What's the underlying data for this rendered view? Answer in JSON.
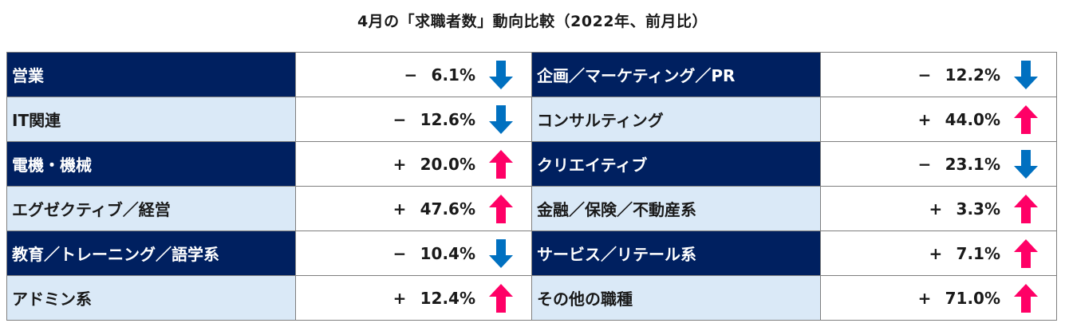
{
  "title": "4月の「求職者数」動向比較（2022年、前月比）",
  "colors": {
    "dark_header": "#002060",
    "light_header": "#dae9f7",
    "up": "#ff0066",
    "down": "#0070c0"
  },
  "chart_data": {
    "type": "table",
    "title": "4月の「求職者数」動向比較（2022年、前月比）",
    "rows": [
      {
        "left": {
          "category": "営業",
          "sign": "−",
          "value": "6.1%",
          "change": -6.1,
          "direction": "down"
        },
        "right": {
          "category": "企画／マーケティング／PR",
          "sign": "−",
          "value": "12.2%",
          "change": -12.2,
          "direction": "down"
        }
      },
      {
        "left": {
          "category": "IT関連",
          "sign": "−",
          "value": "12.6%",
          "change": -12.6,
          "direction": "down"
        },
        "right": {
          "category": "コンサルティング",
          "sign": "+",
          "value": "44.0%",
          "change": 44.0,
          "direction": "up"
        }
      },
      {
        "left": {
          "category": "電機・機械",
          "sign": "+",
          "value": "20.0%",
          "change": 20.0,
          "direction": "up"
        },
        "right": {
          "category": "クリエイティブ",
          "sign": "−",
          "value": "23.1%",
          "change": -23.1,
          "direction": "down"
        }
      },
      {
        "left": {
          "category": "エグゼクティブ／経営",
          "sign": "+",
          "value": "47.6%",
          "change": 47.6,
          "direction": "up"
        },
        "right": {
          "category": "金融／保険／不動産系",
          "sign": "+",
          "value": "3.3%",
          "change": 3.3,
          "direction": "up"
        }
      },
      {
        "left": {
          "category": "教育／トレーニング／語学系",
          "sign": "−",
          "value": "10.4%",
          "change": -10.4,
          "direction": "down"
        },
        "right": {
          "category": "サービス／リテール系",
          "sign": "+",
          "value": "7.1%",
          "change": 7.1,
          "direction": "up"
        }
      },
      {
        "left": {
          "category": "アドミン系",
          "sign": "+",
          "value": "12.4%",
          "change": 12.4,
          "direction": "up"
        },
        "right": {
          "category": "その他の職種",
          "sign": "+",
          "value": "71.0%",
          "change": 71.0,
          "direction": "up"
        }
      }
    ]
  }
}
